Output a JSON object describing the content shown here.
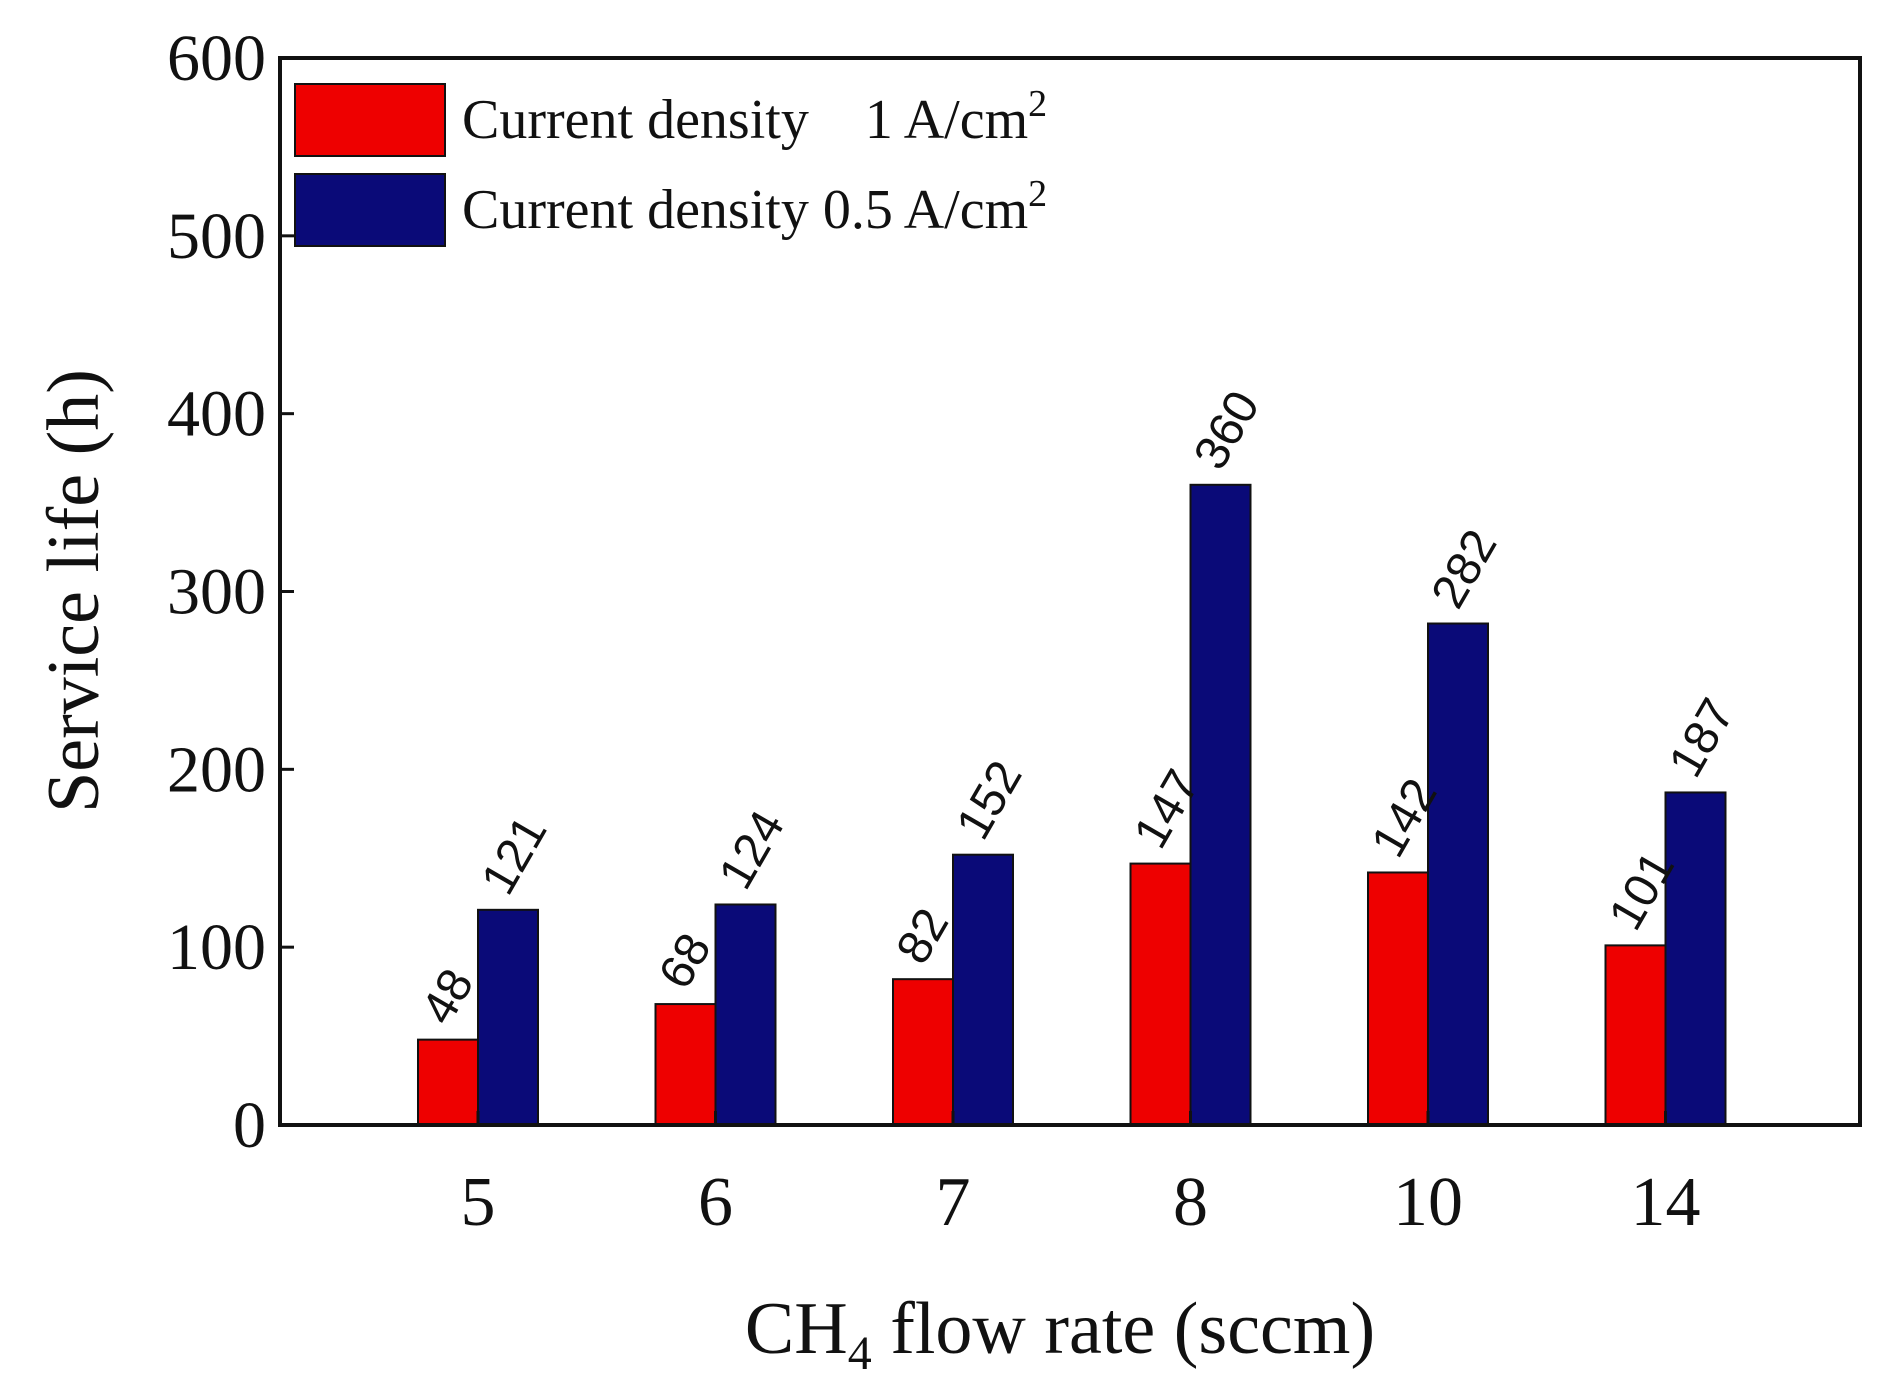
{
  "chart_data": {
    "type": "bar",
    "categories": [
      "5",
      "6",
      "7",
      "8",
      "10",
      "14"
    ],
    "series": [
      {
        "name": "Current density    1 A/cm",
        "superscript": "2",
        "color": "#ee0000",
        "values": [
          48,
          68,
          82,
          147,
          142,
          101
        ]
      },
      {
        "name": "Current density 0.5 A/cm",
        "superscript": "2",
        "color": "#0a0a78",
        "values": [
          121,
          124,
          152,
          360,
          282,
          187
        ]
      }
    ],
    "ylim": [
      0,
      600
    ],
    "yticks": [
      0,
      100,
      200,
      300,
      400,
      500,
      600
    ],
    "ytick_labels": [
      "0",
      "100",
      "200",
      "300",
      "400",
      "500",
      "600"
    ],
    "ylabel": "Service life (h)",
    "xlabel": {
      "prefix": "CH",
      "subscript": "4",
      "suffix": " flow rate (sccm)"
    },
    "legend_position": "top-left",
    "grid": false
  }
}
